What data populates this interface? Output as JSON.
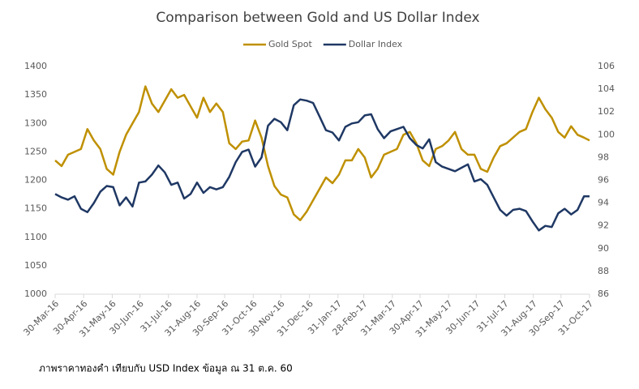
{
  "chart_data": {
    "type": "line",
    "title": "Comparison between Gold and US Dollar Index",
    "note": "ภาพราคาทองคำ เทียบกับ USD Index ข้อมูล ณ 31 ต.ค. 60",
    "legend": "top",
    "x": [
      "2016-03-30",
      "2016-04-06",
      "2016-04-13",
      "2016-04-20",
      "2016-04-27",
      "2016-05-04",
      "2016-05-11",
      "2016-05-18",
      "2016-05-25",
      "2016-06-01",
      "2016-06-08",
      "2016-06-15",
      "2016-06-22",
      "2016-06-29",
      "2016-07-06",
      "2016-07-13",
      "2016-07-20",
      "2016-07-27",
      "2016-08-03",
      "2016-08-10",
      "2016-08-17",
      "2016-08-24",
      "2016-08-31",
      "2016-09-07",
      "2016-09-14",
      "2016-09-21",
      "2016-09-28",
      "2016-10-05",
      "2016-10-12",
      "2016-10-19",
      "2016-10-26",
      "2016-11-02",
      "2016-11-09",
      "2016-11-16",
      "2016-11-23",
      "2016-11-30",
      "2016-12-07",
      "2016-12-14",
      "2016-12-21",
      "2016-12-28",
      "2017-01-04",
      "2017-01-11",
      "2017-01-18",
      "2017-01-25",
      "2017-02-01",
      "2017-02-08",
      "2017-02-15",
      "2017-02-22",
      "2017-03-01",
      "2017-03-08",
      "2017-03-15",
      "2017-03-22",
      "2017-03-29",
      "2017-04-05",
      "2017-04-12",
      "2017-04-19",
      "2017-04-26",
      "2017-05-03",
      "2017-05-10",
      "2017-05-17",
      "2017-05-24",
      "2017-05-31",
      "2017-06-07",
      "2017-06-14",
      "2017-06-21",
      "2017-06-28",
      "2017-07-05",
      "2017-07-12",
      "2017-07-19",
      "2017-07-26",
      "2017-08-02",
      "2017-08-09",
      "2017-08-16",
      "2017-08-23",
      "2017-08-30",
      "2017-09-06",
      "2017-09-13",
      "2017-09-20",
      "2017-09-27",
      "2017-10-04",
      "2017-10-11",
      "2017-10-18",
      "2017-10-25",
      "2017-10-31"
    ],
    "xlim": [
      "2016-03-30",
      "2017-10-31"
    ],
    "xticks": [
      {
        "value": "2016-03-30",
        "label": "30-Mar-16"
      },
      {
        "value": "2016-04-30",
        "label": "30-Apr-16"
      },
      {
        "value": "2016-05-31",
        "label": "31-May-16"
      },
      {
        "value": "2016-06-30",
        "label": "30-Jun-16"
      },
      {
        "value": "2016-07-31",
        "label": "31-Jul-16"
      },
      {
        "value": "2016-08-31",
        "label": "31-Aug-16"
      },
      {
        "value": "2016-09-30",
        "label": "30-Sep-16"
      },
      {
        "value": "2016-10-31",
        "label": "31-Oct-16"
      },
      {
        "value": "2016-11-30",
        "label": "30-Nov-16"
      },
      {
        "value": "2016-12-31",
        "label": "31-Dec-16"
      },
      {
        "value": "2017-01-31",
        "label": "31-Jan-17"
      },
      {
        "value": "2017-02-28",
        "label": "28-Feb-17"
      },
      {
        "value": "2017-03-31",
        "label": "31-Mar-17"
      },
      {
        "value": "2017-04-30",
        "label": "30-Apr-17"
      },
      {
        "value": "2017-05-31",
        "label": "31-May-17"
      },
      {
        "value": "2017-06-30",
        "label": "30-Jun-17"
      },
      {
        "value": "2017-07-31",
        "label": "31-Jul-17"
      },
      {
        "value": "2017-08-31",
        "label": "31-Aug-17"
      },
      {
        "value": "2017-09-30",
        "label": "30-Sep-17"
      },
      {
        "value": "2017-10-31",
        "label": "31-Oct-17"
      }
    ],
    "ylim": [
      1000,
      1400
    ],
    "yticks": [
      1000,
      1050,
      1100,
      1150,
      1200,
      1250,
      1300,
      1350,
      1400
    ],
    "y2lim": [
      86,
      106
    ],
    "y2ticks": [
      86,
      88,
      90,
      92,
      94,
      96,
      98,
      100,
      102,
      104,
      106
    ],
    "series": [
      {
        "name": "Gold Spot",
        "color": "#bf9000",
        "values": [
          1235,
          1225,
          1245,
          1250,
          1255,
          1290,
          1270,
          1255,
          1220,
          1210,
          1250,
          1280,
          1300,
          1320,
          1365,
          1335,
          1320,
          1340,
          1360,
          1345,
          1350,
          1330,
          1310,
          1345,
          1320,
          1335,
          1320,
          1265,
          1255,
          1268,
          1270,
          1305,
          1275,
          1225,
          1190,
          1175,
          1170,
          1140,
          1130,
          1145,
          1165,
          1185,
          1205,
          1195,
          1210,
          1235,
          1235,
          1255,
          1240,
          1205,
          1220,
          1245,
          1250,
          1255,
          1280,
          1285,
          1265,
          1235,
          1225,
          1255,
          1260,
          1270,
          1285,
          1255,
          1245,
          1245,
          1220,
          1215,
          1240,
          1260,
          1265,
          1275,
          1285,
          1290,
          1320,
          1345,
          1325,
          1310,
          1285,
          1275,
          1295,
          1280,
          1275,
          1270
        ]
      },
      {
        "name": "Dollar Index",
        "color": "#1f3864",
        "axis": "y2",
        "values": [
          94.8,
          94.5,
          94.3,
          94.6,
          93.5,
          93.2,
          94.0,
          95.0,
          95.5,
          95.4,
          93.8,
          94.5,
          93.7,
          95.8,
          95.9,
          96.5,
          97.3,
          96.7,
          95.6,
          95.8,
          94.4,
          94.8,
          95.8,
          94.9,
          95.4,
          95.2,
          95.4,
          96.3,
          97.6,
          98.5,
          98.7,
          97.2,
          98.0,
          100.8,
          101.4,
          101.1,
          100.4,
          102.6,
          103.1,
          103.0,
          102.8,
          101.6,
          100.4,
          100.2,
          99.5,
          100.7,
          101.0,
          101.1,
          101.7,
          101.8,
          100.5,
          99.7,
          100.3,
          100.5,
          100.7,
          99.7,
          99.1,
          98.8,
          99.6,
          97.6,
          97.2,
          97.0,
          96.8,
          97.1,
          97.4,
          95.9,
          96.1,
          95.6,
          94.5,
          93.4,
          92.9,
          93.4,
          93.5,
          93.3,
          92.4,
          91.6,
          92.0,
          91.9,
          93.1,
          93.5,
          93.0,
          93.4,
          94.6,
          94.6
        ]
      }
    ]
  }
}
